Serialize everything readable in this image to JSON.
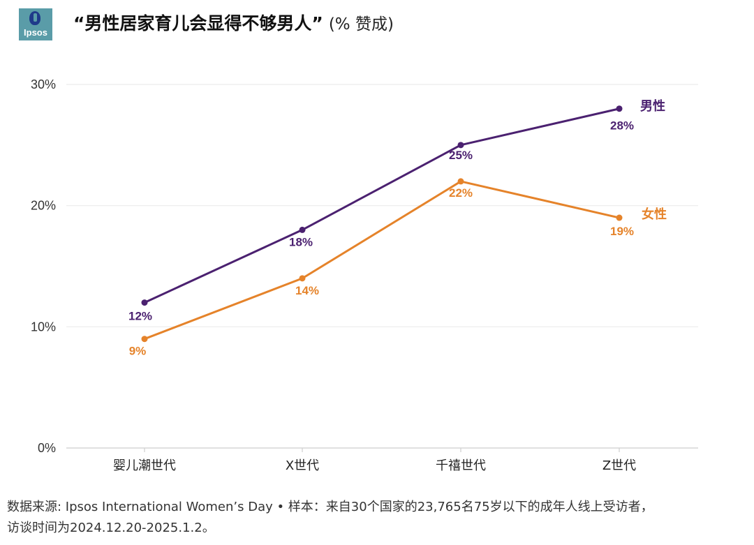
{
  "logo": {
    "text": "Ipsos",
    "background": "#5a9ca8"
  },
  "title": {
    "main": "“男性居家育儿会显得不够男人”",
    "sub": "(% 赞成)"
  },
  "chart_data": {
    "type": "line",
    "categories": [
      "婴儿潮世代",
      "X世代",
      "千禧世代",
      "Z世代"
    ],
    "ylim": [
      0,
      30
    ],
    "yticks": [
      0,
      10,
      20,
      30
    ],
    "ytick_labels": [
      "0%",
      "10%",
      "20%",
      "30%"
    ],
    "grid": true,
    "series": [
      {
        "name": "男性",
        "color": "#4b2170",
        "values": [
          12,
          18,
          25,
          28
        ],
        "labels": [
          "12%",
          "18%",
          "25%",
          "28%"
        ]
      },
      {
        "name": "女性",
        "color": "#e5832a",
        "values": [
          9,
          14,
          22,
          19
        ],
        "labels": [
          "9%",
          "14%",
          "22%",
          "19%"
        ]
      }
    ]
  },
  "footnote": {
    "line1": "数据来源: Ipsos International Women’s Day • 样本：来自30个国家的23,765名75岁以下的成年人线上受访者，",
    "line2": "访谈时间为2024.12.20-2025.1.2。"
  }
}
